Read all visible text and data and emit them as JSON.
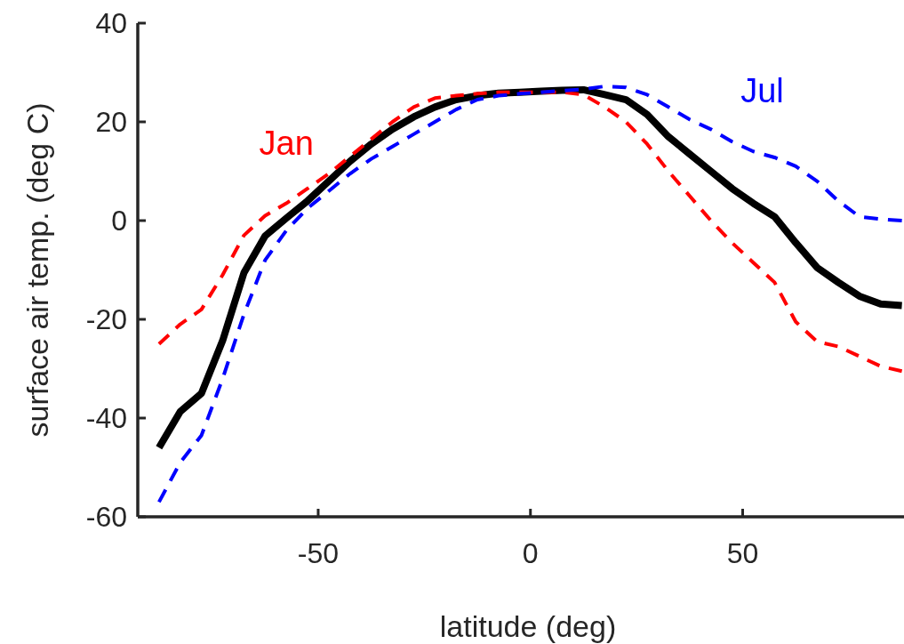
{
  "chart_data": {
    "type": "line",
    "xlabel": "latitude (deg)",
    "ylabel": "surface air temp. (deg C)",
    "x": [
      -87.5,
      -82.5,
      -77.5,
      -72.5,
      -67.5,
      -62.5,
      -57.5,
      -52.5,
      -47.5,
      -42.5,
      -37.5,
      -32.5,
      -27.5,
      -22.5,
      -17.5,
      -12.5,
      -7.5,
      -2.5,
      2.5,
      7.5,
      12.5,
      17.5,
      22.5,
      27.5,
      32.5,
      37.5,
      42.5,
      47.5,
      52.5,
      57.5,
      62.5,
      67.5,
      72.5,
      77.5,
      82.5,
      87.5
    ],
    "series": [
      {
        "color": "#000000",
        "line_style": "solid",
        "values": [
          -46,
          -38.7,
          -35,
          -24.3,
          -10.6,
          -3.1,
          0.5,
          4,
          8,
          12,
          15.5,
          18.5,
          21,
          23,
          24.5,
          25.3,
          25.8,
          26,
          26.2,
          26.4,
          26.5,
          25.5,
          24.5,
          21.5,
          17,
          13.5,
          10,
          6.5,
          3.5,
          0.8,
          -4.5,
          -9.5,
          -12.5,
          -15.3,
          -16.9,
          -17.2
        ]
      },
      {
        "name": "Jan",
        "color": "#ff0000",
        "line_style": "dashed",
        "values": [
          -25,
          -21,
          -18,
          -11,
          -3,
          1,
          3.5,
          6.5,
          9.5,
          13,
          16.5,
          20,
          23,
          24.8,
          25.3,
          25.7,
          26,
          26,
          26,
          26,
          25.5,
          23,
          20,
          15.5,
          10,
          5,
          0,
          -4.5,
          -8.5,
          -12.5,
          -20.5,
          -24.5,
          -25.5,
          -27.5,
          -29.5,
          -30.5
        ]
      },
      {
        "name": "Jul",
        "color": "#0000ff",
        "line_style": "dashed",
        "values": [
          -57,
          -49,
          -43.5,
          -32,
          -19,
          -8,
          -2,
          2.5,
          6,
          9.5,
          12.5,
          15,
          17.5,
          20,
          22.5,
          24.5,
          25.3,
          25.7,
          26,
          26.3,
          26.6,
          27.2,
          27,
          25.5,
          23,
          20.5,
          18.5,
          16,
          14,
          12.8,
          11,
          8,
          4,
          0.8,
          0.3,
          0
        ]
      }
    ],
    "xlim": [
      -92.5,
      88
    ],
    "xticks": [
      -50,
      0,
      50
    ],
    "ylim": [
      -60,
      40
    ],
    "yticks": [
      -60,
      -40,
      -20,
      0,
      20,
      40
    ]
  }
}
